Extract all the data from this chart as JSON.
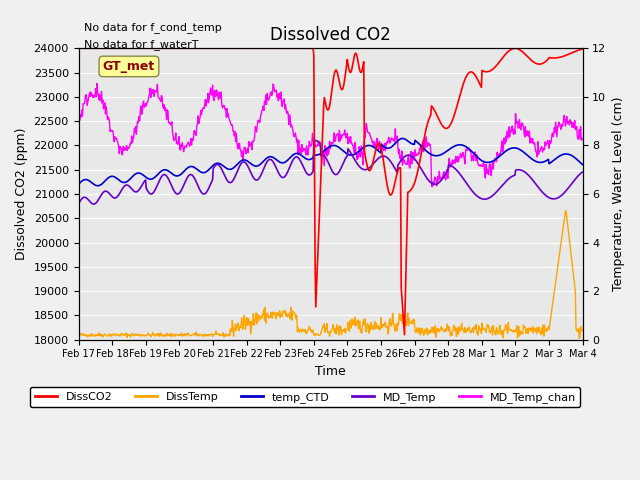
{
  "title": "Dissolved CO2",
  "xlabel": "Time",
  "ylabel_left": "Dissolved CO2 (ppm)",
  "ylabel_right": "Temperature, Water Level (cm)",
  "annotation1": "No data for f_cond_temp",
  "annotation2": "No data for f_waterT",
  "legend_label": "GT_met",
  "ylim_left": [
    18000,
    24000
  ],
  "ylim_right": [
    0,
    12
  ],
  "background_color": "#e8e8e8",
  "series": {
    "DissCO2": {
      "color": "#ff0000",
      "label": "DissCO2"
    },
    "DissTemp": {
      "color": "#ffa500",
      "label": "DissTemp"
    },
    "temp_CTD": {
      "color": "#0000cc",
      "label": "temp_CTD"
    },
    "MD_Temp": {
      "color": "#6600cc",
      "label": "MD_Temp"
    },
    "MD_Temp_chan": {
      "color": "#ff00ff",
      "label": "MD_Temp_chan"
    }
  },
  "xtick_positions": [
    0,
    1,
    2,
    3,
    4,
    5,
    6,
    7,
    8,
    9,
    10,
    11,
    12,
    13,
    14,
    15
  ],
  "xtick_labels": [
    "Feb 17",
    "Feb 18",
    "Feb 19",
    "Feb 20",
    "Feb 21",
    "Feb 22",
    "Feb 23",
    "Feb 24",
    "Feb 25",
    "Feb 26",
    "Feb 27",
    "Feb 28",
    "Mar 1",
    "Mar 2",
    "Mar 3",
    "Mar 4"
  ],
  "yticks_left": [
    18000,
    18500,
    19000,
    19500,
    20000,
    20500,
    21000,
    21500,
    22000,
    22500,
    23000,
    23500,
    24000
  ],
  "yticks_right": [
    0,
    2,
    4,
    6,
    8,
    10,
    12
  ]
}
